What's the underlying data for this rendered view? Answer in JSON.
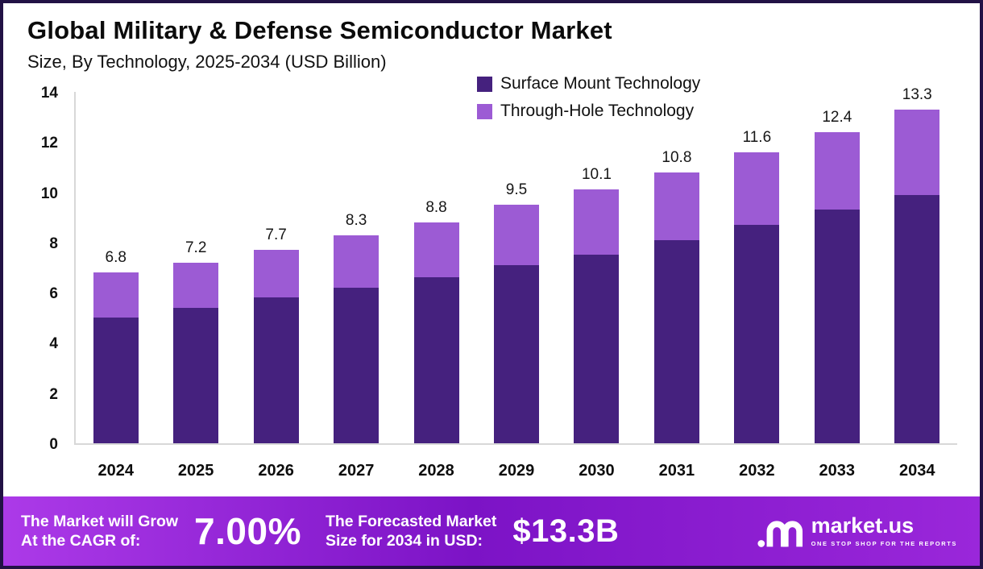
{
  "title": "Global Military & Defense Semiconductor Market",
  "subtitle": "Size, By Technology, 2025-2034 (USD Billion)",
  "legend": [
    {
      "label": "Surface Mount Technology",
      "color": "#45217E"
    },
    {
      "label": "Through-Hole Technology",
      "color": "#9C5BD4"
    }
  ],
  "chart_data": {
    "type": "bar",
    "stacked": true,
    "title": "Global Military & Defense Semiconductor Market Size, By Technology, 2025-2034 (USD Billion)",
    "categories": [
      "2024",
      "2025",
      "2026",
      "2027",
      "2028",
      "2029",
      "2030",
      "2031",
      "2032",
      "2033",
      "2034"
    ],
    "series": [
      {
        "name": "Surface Mount Technology",
        "color": "#45217E",
        "values": [
          5.0,
          5.4,
          5.8,
          6.2,
          6.6,
          7.1,
          7.5,
          8.1,
          8.7,
          9.3,
          9.9
        ]
      },
      {
        "name": "Through-Hole Technology",
        "color": "#9C5BD4",
        "values": [
          1.8,
          1.8,
          1.9,
          2.1,
          2.2,
          2.4,
          2.6,
          2.7,
          2.9,
          3.1,
          3.4
        ]
      }
    ],
    "totals": [
      6.8,
      7.2,
      7.7,
      8.3,
      8.8,
      9.5,
      10.1,
      10.8,
      11.6,
      12.4,
      13.3
    ],
    "xlabel": "",
    "ylabel": "",
    "ylim": [
      0,
      14
    ],
    "yticks": [
      0,
      2,
      4,
      6,
      8,
      10,
      12,
      14
    ],
    "grid": false,
    "legend_position": "top-right"
  },
  "footer": {
    "cagr_label": "The Market will Grow\nAt the CAGR of:",
    "cagr_value": "7.00%",
    "forecast_label": "The Forecasted Market\nSize for 2034 in USD:",
    "forecast_value": "$13.3B",
    "brand_name": "market.us",
    "brand_tagline": "ONE STOP SHOP FOR THE REPORTS"
  }
}
